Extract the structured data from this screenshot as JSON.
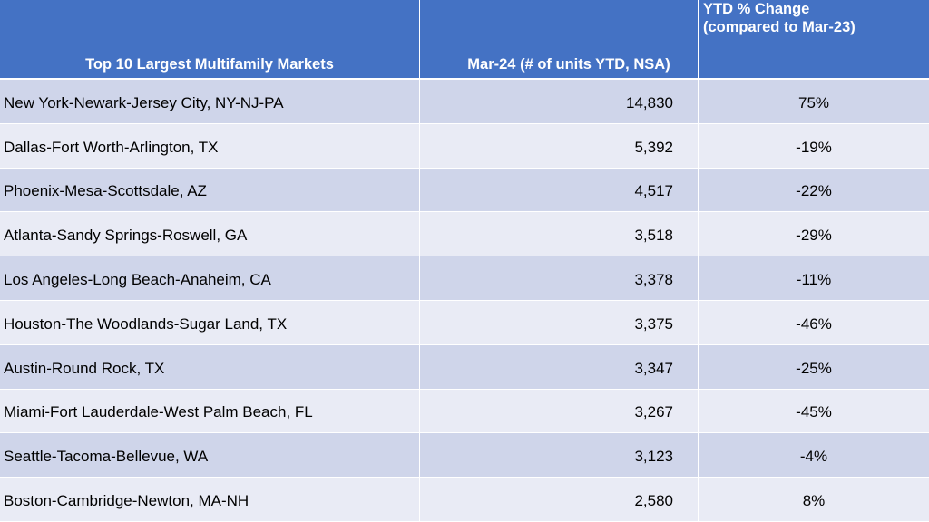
{
  "headers": {
    "market": "Top 10 Largest Multifamily Markets",
    "units": "Mar-24 (# of units YTD, NSA)",
    "change_line1": "YTD % Change",
    "change_line2": "(compared to Mar-23)"
  },
  "rows": [
    {
      "market": "New York-Newark-Jersey City, NY-NJ-PA",
      "units": "14,830",
      "change": "75%"
    },
    {
      "market": "Dallas-Fort Worth-Arlington, TX",
      "units": "5,392",
      "change": "-19%"
    },
    {
      "market": "Phoenix-Mesa-Scottsdale, AZ",
      "units": "4,517",
      "change": "-22%"
    },
    {
      "market": "Atlanta-Sandy Springs-Roswell, GA",
      "units": "3,518",
      "change": "-29%"
    },
    {
      "market": "Los Angeles-Long Beach-Anaheim, CA",
      "units": "3,378",
      "change": "-11%"
    },
    {
      "market": "Houston-The Woodlands-Sugar Land, TX",
      "units": "3,375",
      "change": "-46%"
    },
    {
      "market": "Austin-Round Rock, TX",
      "units": "3,347",
      "change": "-25%"
    },
    {
      "market": "Miami-Fort Lauderdale-West Palm Beach, FL",
      "units": "3,267",
      "change": "-45%"
    },
    {
      "market": "Seattle-Tacoma-Bellevue, WA",
      "units": "3,123",
      "change": "-4%"
    },
    {
      "market": "Boston-Cambridge-Newton, MA-NH",
      "units": "2,580",
      "change": "8%"
    }
  ],
  "colors": {
    "header_bg": "#4472c4",
    "row_odd": "#cfd5ea",
    "row_even": "#e9ebf5"
  }
}
